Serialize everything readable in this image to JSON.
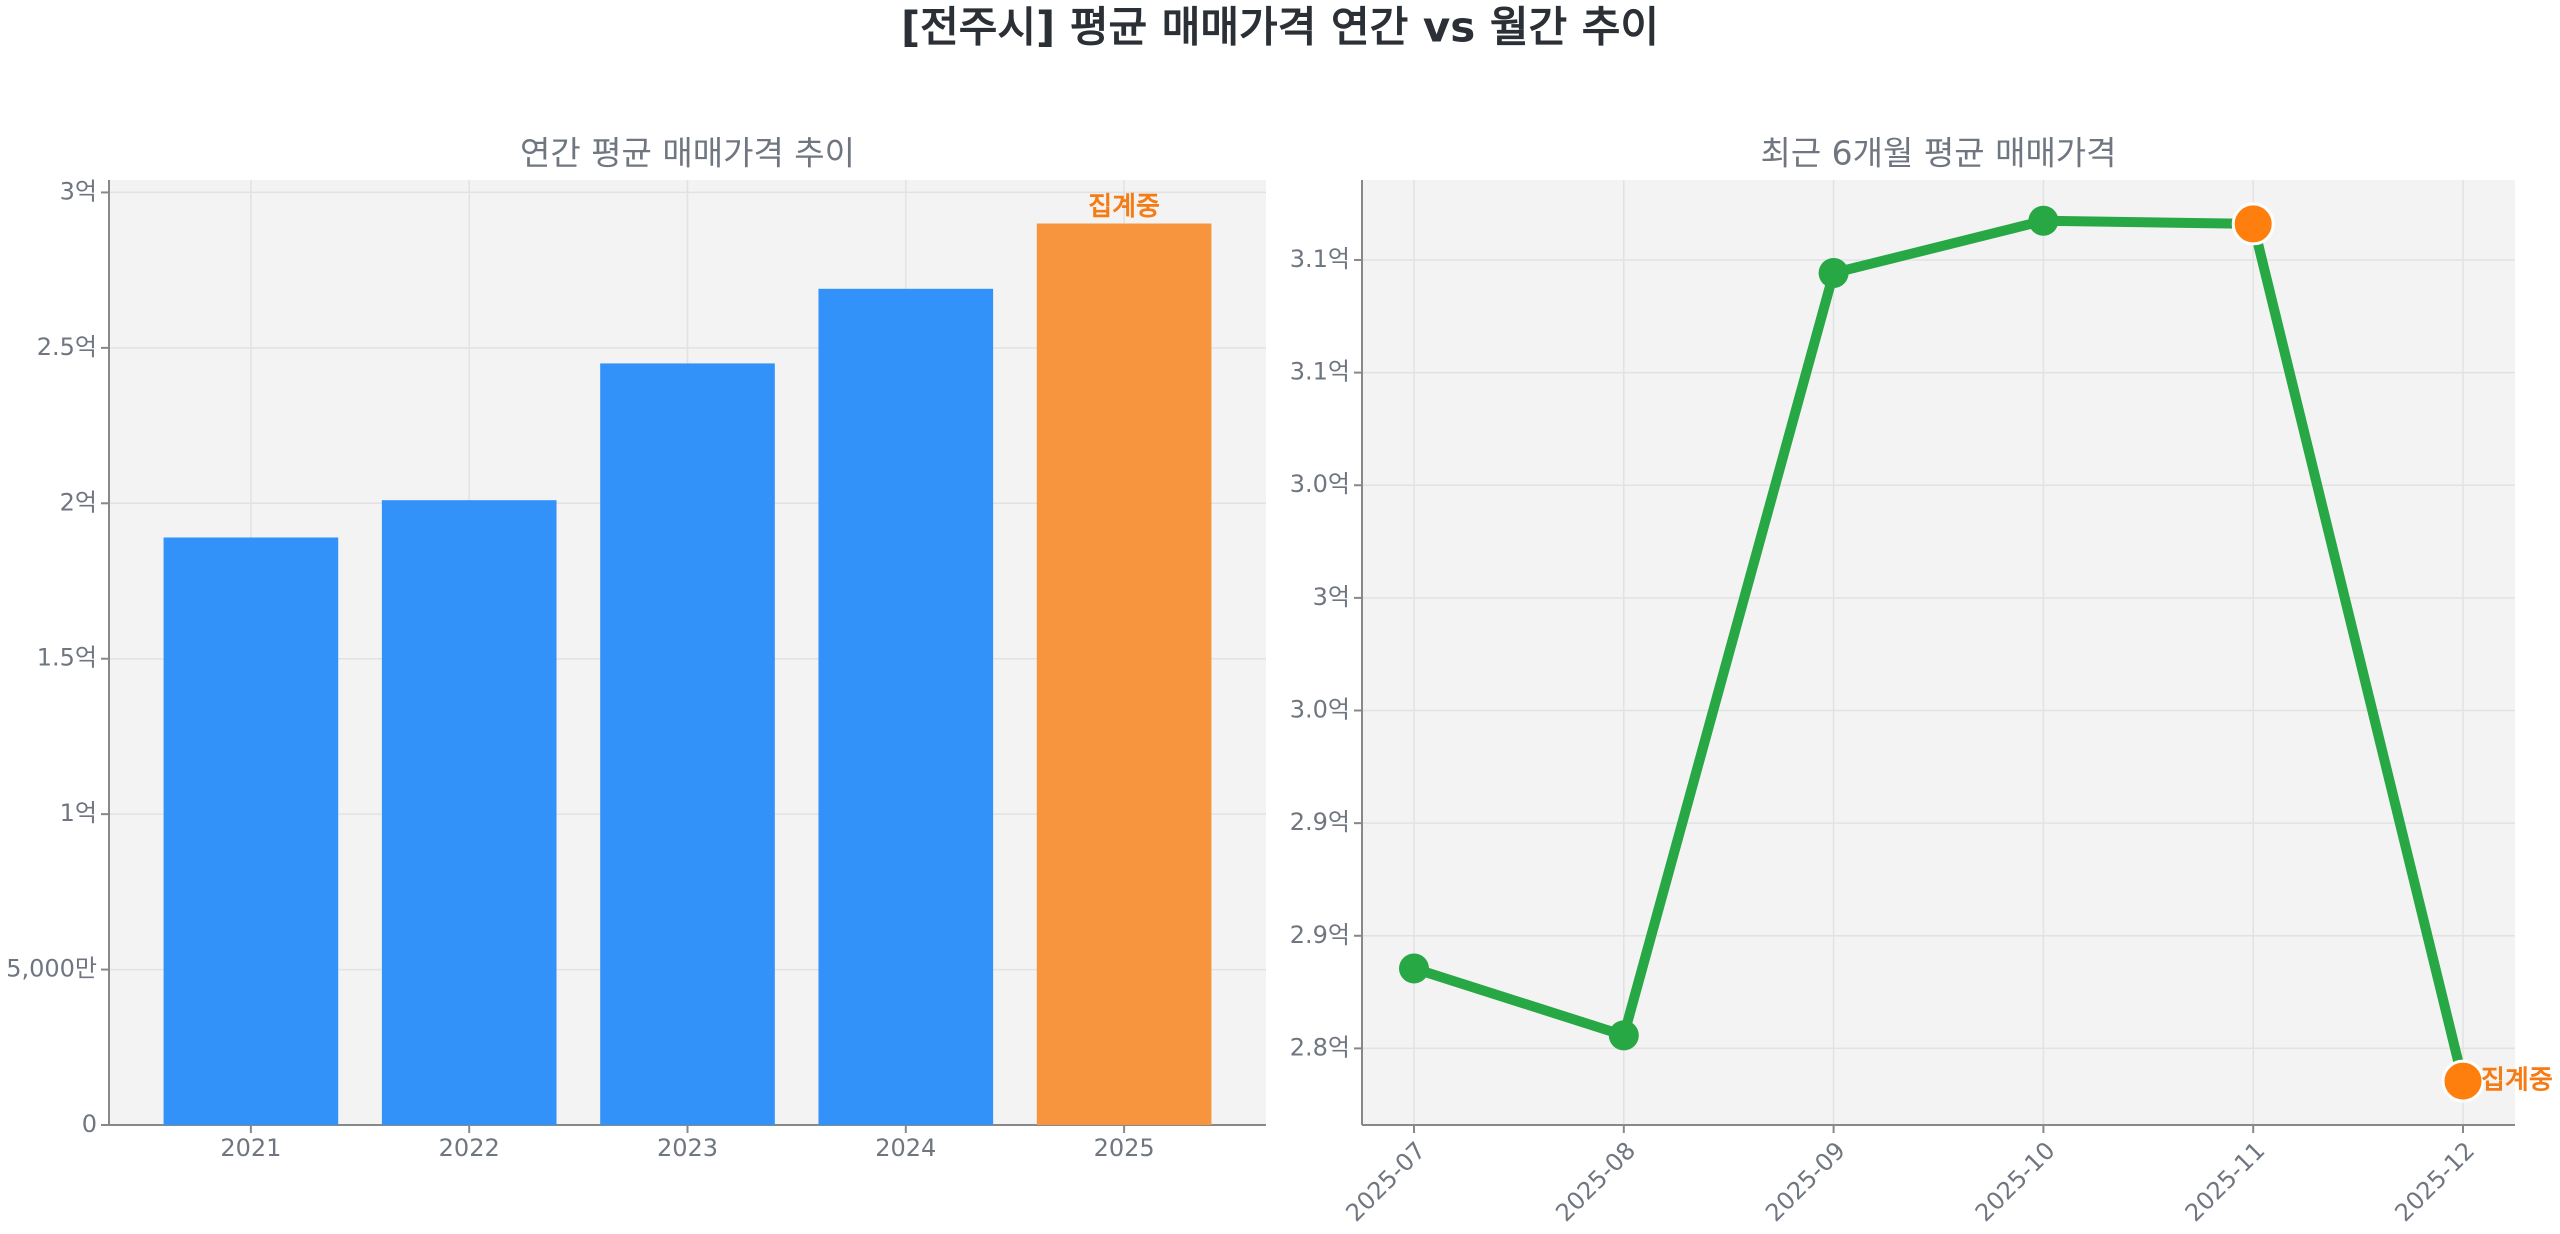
{
  "title": "[전주시] 평균 매매가격 연간 vs 월간 추이",
  "chart_data": [
    {
      "type": "bar",
      "title": "연간 평균 매매가격 추이",
      "categories": [
        "2021",
        "2022",
        "2023",
        "2024",
        "2025"
      ],
      "values": [
        189000000,
        201000000,
        245000000,
        269000000,
        290000000
      ],
      "colors": [
        "#3292fa",
        "#3292fa",
        "#3292fa",
        "#3292fa",
        "#f7943e"
      ],
      "annotation": "집계중",
      "annotation_color": "#f57c14",
      "ylim": [
        0,
        304000000
      ],
      "yticks": [
        0,
        {
          "value": 50000000,
          "label": "5,000만"
        },
        {
          "value": 100000000,
          "label": "1억"
        },
        {
          "value": 150000000,
          "label": "1.5억"
        },
        {
          "value": 200000000,
          "label": "2억"
        },
        {
          "value": 250000000,
          "label": "2.5억"
        },
        {
          "value": 300000000,
          "label": "3억"
        }
      ],
      "grid": true
    },
    {
      "type": "line",
      "title": "최근 6개월 평균 매매가격",
      "categories": [
        "2025-07",
        "2025-08",
        "2025-09",
        "2025-10",
        "2025-11",
        "2025-12"
      ],
      "series": [
        {
          "color": "#28a745",
          "values": [
            283550000,
            280580000,
            314420000,
            316740000,
            316600000,
            278550000
          ]
        }
      ],
      "marker_colors": [
        "#28a745",
        "#28a745",
        "#28a745",
        "#28a745",
        "#ff7f0e",
        "#ff7f0e"
      ],
      "annotation": "집계중",
      "annotation_color": "#f57c14",
      "ylim": [
        276600000,
        318550000
      ],
      "yticks": [
        {
          "value": 280000000,
          "label": "2.8억"
        },
        {
          "value": 285000000,
          "label": "2.9억"
        },
        {
          "value": 290000000,
          "label": "2.9억"
        },
        {
          "value": 295000000,
          "label": "3.0억"
        },
        {
          "value": 300000000,
          "label": "3억"
        },
        {
          "value": 305000000,
          "label": "3.0억"
        },
        {
          "value": 310000000,
          "label": "3.1억"
        },
        {
          "value": 315000000,
          "label": "3.1억"
        }
      ],
      "grid": true
    }
  ]
}
